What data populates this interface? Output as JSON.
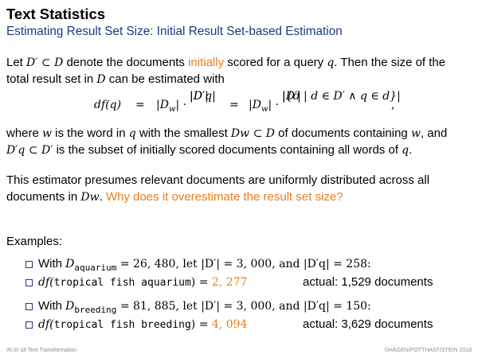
{
  "header": {
    "title": "Text Statistics",
    "subtitle": "Estimating Result Set Size: Initial Result Set-based Estimation"
  },
  "paragraph1": {
    "line1_a": "Let ",
    "line1_m1": "D′ ⊂ D",
    "line1_b": " denote the documents ",
    "line1_accent": "initially",
    "line1_c": " scored for a query ",
    "line1_m2": "q",
    "line1_d": ". Then the size of the",
    "line2_a": "total result set in ",
    "line2_m": "D",
    "line2_b": " can be estimated with"
  },
  "formula": {
    "lhs": "df(q)",
    "eq1": "=",
    "dw1": "|D",
    "dw1_sub": "w",
    "dw1_end": "| ·",
    "frac1_num": "|D′q|",
    "frac1_den": "|D′|",
    "eq2": "=",
    "dw2": "|D",
    "dw2_sub": "w",
    "dw2_end": "| ·",
    "frac2_num": "|{d | d ∈ D′ ∧ q ∈ d}|",
    "frac2_den": "|D′|",
    "comma": ","
  },
  "paragraph2": {
    "line1_a": "where ",
    "line1_m1": "w",
    "line1_b": " is the word in ",
    "line1_m2": "q",
    "line1_c": " with the smallest ",
    "line1_m3": "Dw ⊂ D",
    "line1_d": " of documents containing ",
    "line1_m4": "w",
    "line1_e": ", and",
    "line2_m1": "D′q ⊂ D′",
    "line2_a": " is the subset of initially scored documents containing all words of ",
    "line2_m2": "q",
    "line2_b": "."
  },
  "paragraph3": {
    "line1": "This estimator presumes relevant documents are uniformly distributed across all",
    "line2_a": "documents in ",
    "line2_m": "Dw",
    "line2_b": ". ",
    "line2_question": "Why does it overestimate the result set size?"
  },
  "examples": {
    "heading": "Examples:",
    "items": [
      {
        "with": "With ",
        "math_D": "D",
        "sub": "aquarium",
        "rest": " = 26, 480, let |D′| = 3, 000, and |D′q| = 258:"
      },
      {
        "func": "df(",
        "query": "tropical fish aquarium",
        "close": ") = ",
        "value": "2, 277",
        "actual": "actual: 1,529 documents"
      },
      {
        "with": "With ",
        "math_D": "D",
        "sub": "breeding",
        "rest": " = 81, 885, let |D′| = 3, 000, and |D′q| = 150:"
      },
      {
        "func": "df(",
        "query": "tropical fish breeding",
        "close": ") = ",
        "value": "4, 094",
        "actual": "actual: 3,629 documents"
      }
    ]
  },
  "footer": {
    "left": "IR:III-18   Text Transformation",
    "right": "©HAGEN/POTTHAST/STEIN 2018"
  },
  "colors": {
    "accent": "#e67e22",
    "subtitle": "#1a3a7c",
    "footer": "#8c8c8c"
  }
}
